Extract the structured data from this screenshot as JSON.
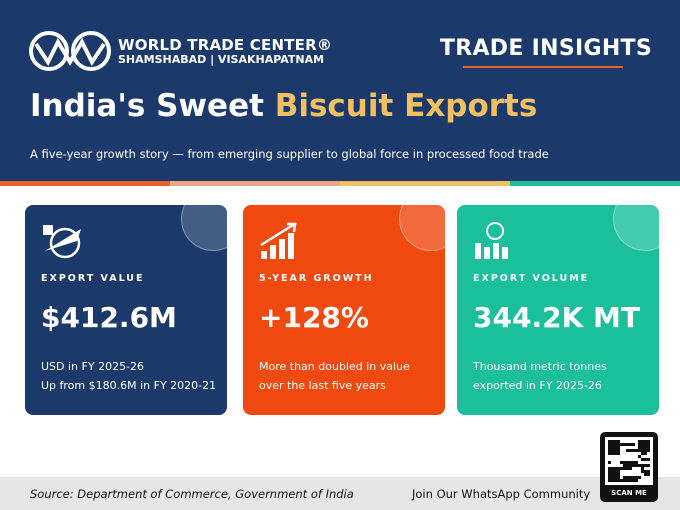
{
  "header": {
    "logo_name": "WORLD TRADE CENTER®",
    "logo_subtitle": "SHAMSHABAD | VISAKHAPATNAM",
    "badge": "TRADE INSIGHTS",
    "title_plain": "India's Sweet ",
    "title_highlight": "Biscuit Exports",
    "subtitle": "A five-year growth story — from emerging supplier to global force in processed food trade"
  },
  "cards": [
    {
      "label": "EXPORT VALUE",
      "value": "$412.6M",
      "lines": [
        "USD in FY 2025-26",
        "Up from $180.6M in FY 2020-21"
      ]
    },
    {
      "label": "5-YEAR GROWTH",
      "value": "+128%",
      "lines": [
        "More than doubled in value",
        "over the last five years"
      ]
    },
    {
      "label": "EXPORT VOLUME",
      "value": "344.2K MT",
      "lines": [
        "Thousand metric tonnes",
        "exported in FY 2025-26"
      ]
    }
  ],
  "footer": {
    "source": "Source: Department of Commerce, Government of India",
    "community": "Join Our WhatsApp Community",
    "qr_label": "SCAN ME"
  }
}
